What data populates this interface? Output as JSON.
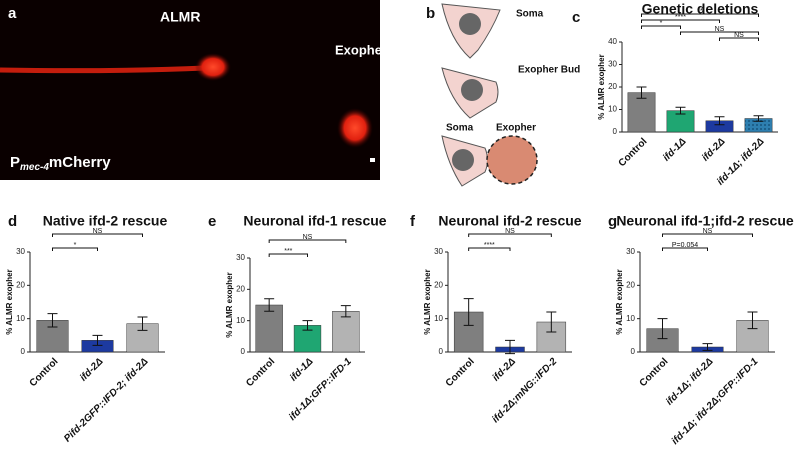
{
  "panel_a": {
    "panel": "a",
    "cell": "ALMR",
    "exopher": "Exopher",
    "promoter": "P",
    "promoter_subscript": "mec-4",
    "reporter": "mCherry"
  },
  "panel_b": {
    "panel": "b",
    "soma": "Soma",
    "bud": "Exopher Bud",
    "soma_2": "Soma",
    "exopher": "Exopher"
  },
  "chart_data": [
    {
      "type": "bar",
      "panel": "c",
      "title": "Genetic deletions",
      "y_label": "% ALMR exopher",
      "categories": [
        "Control",
        "ifd-1Δ",
        "ifd-2Δ",
        "ifd-1Δ; ifd-2Δ"
      ],
      "values": [
        17.5,
        9.5,
        5,
        6
      ],
      "errors": [
        2.5,
        1.5,
        1.8,
        1.2
      ],
      "colors": [
        "#7f7f7f",
        "#1fa672",
        "#1d3aa0",
        "#2e7fb0"
      ],
      "ylim": [
        0,
        40
      ],
      "yticks": [
        0,
        10,
        20,
        30,
        40
      ],
      "annotations": [
        {
          "text": "NS",
          "pair": [
            2,
            3
          ]
        },
        {
          "text": "NS",
          "pair": [
            1,
            3
          ]
        },
        {
          "text": "*",
          "pair": [
            0,
            1
          ]
        },
        {
          "text": "****",
          "pair": [
            0,
            2
          ]
        },
        {
          "text": "**",
          "pair": [
            0,
            3
          ]
        }
      ]
    },
    {
      "type": "bar",
      "panel": "d",
      "title": "Native ifd-2 rescue",
      "y_label": "% ALMR exopher",
      "categories": [
        "Control",
        "ifd-2Δ",
        "Pifd-2GFP::IFD-2; ifd-2Δ"
      ],
      "values": [
        9.5,
        3.5,
        8.5
      ],
      "errors": [
        2,
        1.5,
        2
      ],
      "colors": [
        "#7f7f7f",
        "#1d3aa0",
        "#b3b3b3"
      ],
      "ylim": [
        0,
        30
      ],
      "yticks": [
        0,
        10,
        20,
        30
      ],
      "annotations": [
        {
          "text": "*",
          "pair": [
            0,
            1
          ]
        },
        {
          "text": "NS",
          "pair": [
            0,
            2
          ]
        }
      ]
    },
    {
      "type": "bar",
      "panel": "e",
      "title": "Neuronal ifd-1 rescue",
      "y_label": "% ALMR exopher",
      "categories": [
        "Control",
        "ifd-1Δ",
        "ifd-1Δ;GFP::IFD-1"
      ],
      "values": [
        15,
        8.5,
        13
      ],
      "errors": [
        2,
        1.5,
        1.8
      ],
      "colors": [
        "#7f7f7f",
        "#1fa672",
        "#b3b3b3"
      ],
      "ylim": [
        0,
        30
      ],
      "yticks": [
        0,
        10,
        20,
        30
      ],
      "annotations": [
        {
          "text": "***",
          "pair": [
            0,
            1
          ]
        },
        {
          "text": "NS",
          "pair": [
            0,
            2
          ]
        }
      ]
    },
    {
      "type": "bar",
      "panel": "f",
      "title": "Neuronal ifd-2 rescue",
      "y_label": "% ALMR exopher",
      "categories": [
        "Control",
        "ifd-2Δ",
        "ifd-2Δ;mNG::IFD-2"
      ],
      "values": [
        12,
        1.5,
        9
      ],
      "errors": [
        4,
        2,
        3
      ],
      "colors": [
        "#7f7f7f",
        "#1d3aa0",
        "#b3b3b3"
      ],
      "ylim": [
        0,
        30
      ],
      "yticks": [
        0,
        10,
        20,
        30
      ],
      "annotations": [
        {
          "text": "****",
          "pair": [
            0,
            1
          ]
        },
        {
          "text": "NS",
          "pair": [
            0,
            2
          ]
        }
      ]
    },
    {
      "type": "bar",
      "panel": "g",
      "title": "Neuronal ifd-1;ifd-2 rescue",
      "y_label": "% ALMR exopher",
      "categories": [
        "Control",
        "ifd-1Δ; ifd-2Δ",
        "ifd-1Δ; ifd-2Δ;GFP::IFD-1"
      ],
      "values": [
        7,
        1.5,
        9.5
      ],
      "errors": [
        3,
        1,
        2.5
      ],
      "colors": [
        "#7f7f7f",
        "#1d3aa0",
        "#b3b3b3"
      ],
      "ylim": [
        0,
        30
      ],
      "yticks": [
        0,
        10,
        20,
        30
      ],
      "annotations": [
        {
          "text": "P=0.054",
          "pair": [
            0,
            1
          ]
        },
        {
          "text": "NS",
          "pair": [
            0,
            2
          ]
        }
      ]
    }
  ]
}
